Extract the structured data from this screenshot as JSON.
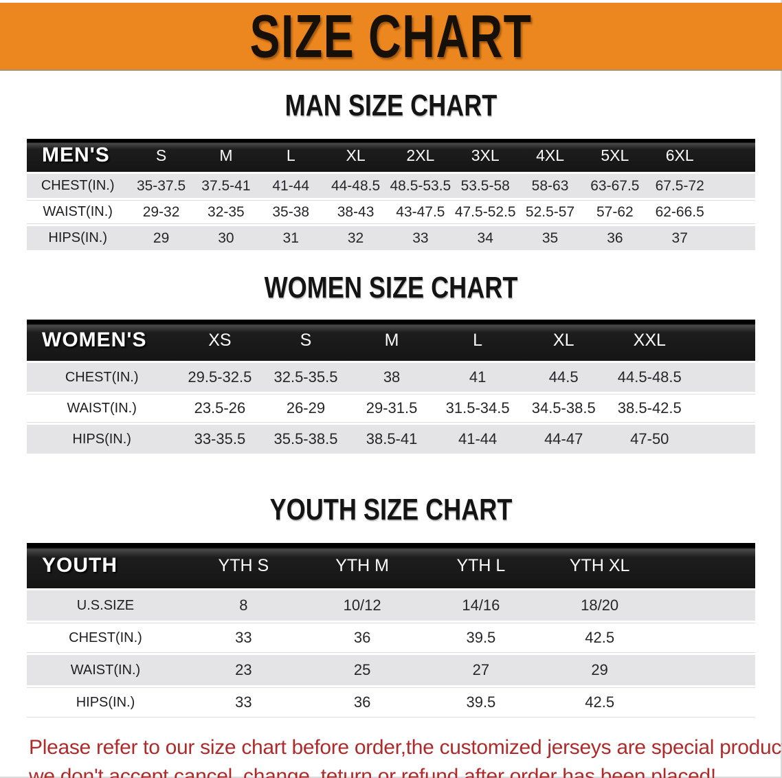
{
  "banner": {
    "title": "SIZE CHART"
  },
  "colors": {
    "banner_bg": "#EC861E",
    "header_bg": "#151515",
    "row_gray": "#E4E4E6",
    "note_red": "#AE2B2C"
  },
  "sections": [
    {
      "heading": "MAN SIZE CHART",
      "corner_label": "MEN'S",
      "columns": [
        "S",
        "M",
        "L",
        "XL",
        "2XL",
        "3XL",
        "4XL",
        "5XL",
        "6XL"
      ],
      "rows": [
        {
          "label": "CHEST(IN.)",
          "values": [
            "35-37.5",
            "37.5-41",
            "41-44",
            "44-48.5",
            "48.5-53.5",
            "53.5-58",
            "58-63",
            "63-67.5",
            "67.5-72"
          ]
        },
        {
          "label": "WAIST(IN.)",
          "values": [
            "29-32",
            "32-35",
            "35-38",
            "38-43",
            "43-47.5",
            "47.5-52.5",
            "52.5-57",
            "57-62",
            "62-66.5"
          ]
        },
        {
          "label": "HIPS(IN.)",
          "values": [
            "29",
            "30",
            "31",
            "32",
            "33",
            "34",
            "35",
            "36",
            "37"
          ]
        }
      ]
    },
    {
      "heading": "WOMEN SIZE CHART",
      "corner_label": "WOMEN'S",
      "columns": [
        "XS",
        "S",
        "M",
        "L",
        "XL",
        "XXL"
      ],
      "rows": [
        {
          "label": "CHEST(IN.)",
          "values": [
            "29.5-32.5",
            "32.5-35.5",
            "38",
            "41",
            "44.5",
            "44.5-48.5"
          ]
        },
        {
          "label": "WAIST(IN.)",
          "values": [
            "23.5-26",
            "26-29",
            "29-31.5",
            "31.5-34.5",
            "34.5-38.5",
            "38.5-42.5"
          ]
        },
        {
          "label": "HIPS(IN.)",
          "values": [
            "33-35.5",
            "35.5-38.5",
            "38.5-41",
            "41-44",
            "44-47",
            "47-50"
          ]
        }
      ]
    },
    {
      "heading": "YOUTH SIZE CHART",
      "corner_label": "YOUTH",
      "columns": [
        "YTH S",
        "YTH M",
        "YTH L",
        "YTH XL"
      ],
      "rows": [
        {
          "label": "U.S.SIZE",
          "values": [
            "8",
            "10/12",
            "14/16",
            "18/20"
          ]
        },
        {
          "label": "CHEST(IN.)",
          "values": [
            "33",
            "36",
            "39.5",
            "42.5"
          ]
        },
        {
          "label": "WAIST(IN.)",
          "values": [
            "23",
            "25",
            "27",
            "29"
          ]
        },
        {
          "label": "HIPS(IN.)",
          "values": [
            "33",
            "36",
            "39.5",
            "42.5"
          ]
        }
      ]
    }
  ],
  "note": {
    "line1": "Please refer to our size chart before order,the customized jerseys are special products,",
    "line2": "we don't accept cancel, change, teturn or refund after order has been placed!"
  }
}
